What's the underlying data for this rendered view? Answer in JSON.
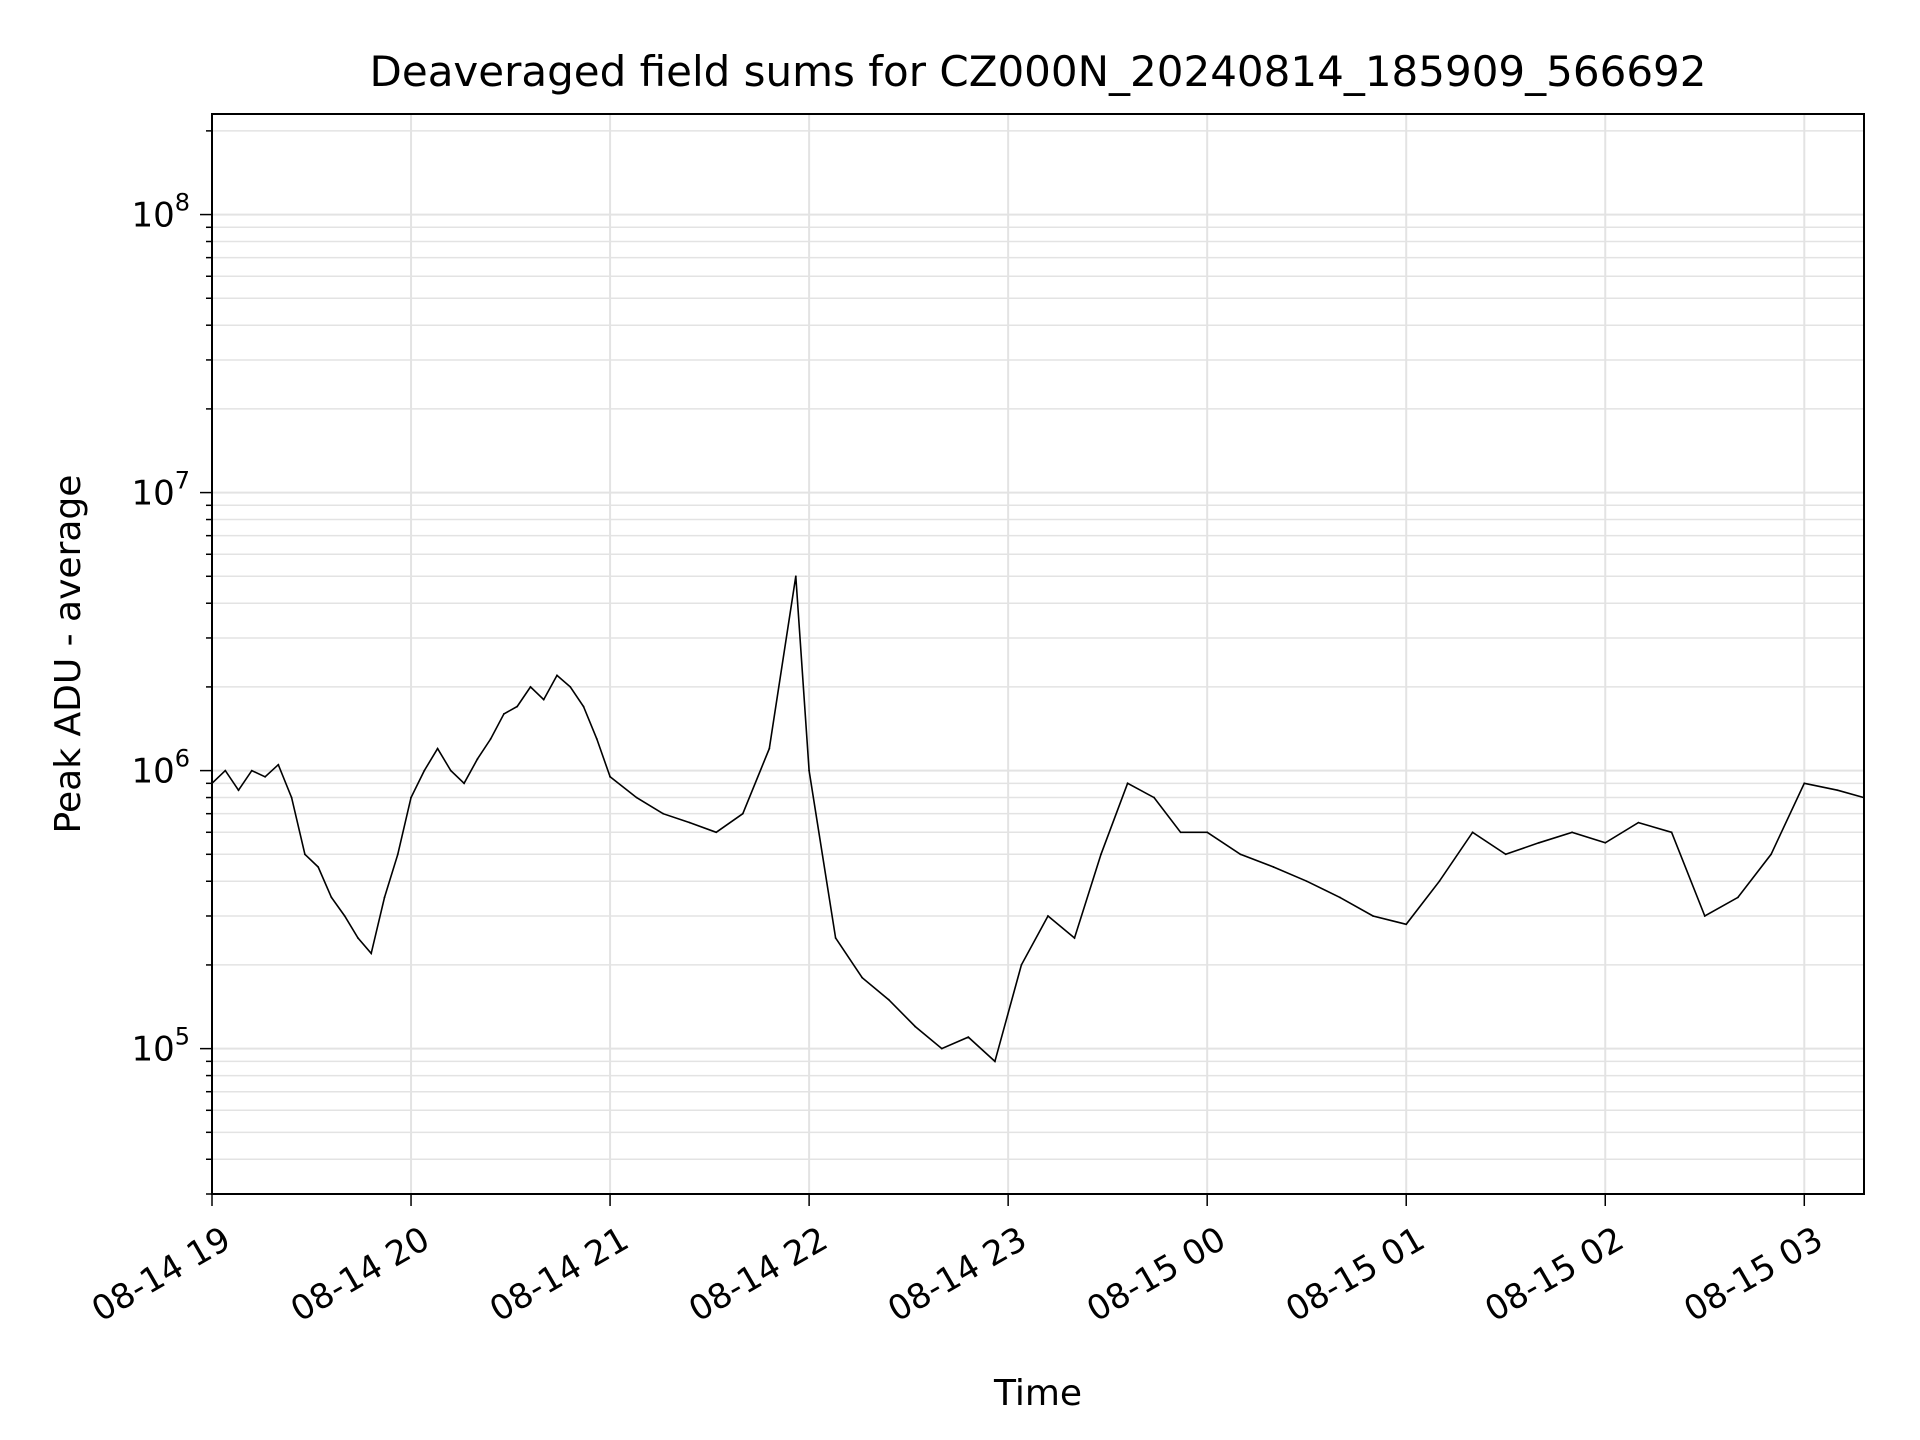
{
  "chart_data": {
    "type": "line",
    "title": "Deaveraged field sums for CZ000N_20240814_185909_566692",
    "xlabel": "Time",
    "ylabel": "Peak ADU - average",
    "yscale": "log",
    "ylim": [
      30000,
      230000000
    ],
    "xlim": [
      "2024-08-14 19:00",
      "2024-08-15 03:18"
    ],
    "grid": true,
    "line_color": "#000000",
    "x_ticks": [
      "08-14 19",
      "08-14 20",
      "08-14 21",
      "08-14 22",
      "08-14 23",
      "08-15 00",
      "08-15 01",
      "08-15 02",
      "08-15 03"
    ],
    "y_ticks": [
      {
        "base": "10",
        "exp": "5"
      },
      {
        "base": "10",
        "exp": "6"
      },
      {
        "base": "10",
        "exp": "7"
      },
      {
        "base": "10",
        "exp": "8"
      }
    ],
    "series": [
      {
        "points": [
          [
            "2024-08-14 19:00",
            900000
          ],
          [
            "2024-08-14 19:04",
            1000000
          ],
          [
            "2024-08-14 19:08",
            850000
          ],
          [
            "2024-08-14 19:12",
            1000000
          ],
          [
            "2024-08-14 19:16",
            950000
          ],
          [
            "2024-08-14 19:20",
            1050000
          ],
          [
            "2024-08-14 19:24",
            800000
          ],
          [
            "2024-08-14 19:28",
            500000
          ],
          [
            "2024-08-14 19:32",
            450000
          ],
          [
            "2024-08-14 19:36",
            350000
          ],
          [
            "2024-08-14 19:40",
            300000
          ],
          [
            "2024-08-14 19:44",
            250000
          ],
          [
            "2024-08-14 19:48",
            220000
          ],
          [
            "2024-08-14 19:52",
            350000
          ],
          [
            "2024-08-14 19:56",
            500000
          ],
          [
            "2024-08-14 20:00",
            800000
          ],
          [
            "2024-08-14 20:04",
            1000000
          ],
          [
            "2024-08-14 20:08",
            1200000
          ],
          [
            "2024-08-14 20:12",
            1000000
          ],
          [
            "2024-08-14 20:16",
            900000
          ],
          [
            "2024-08-14 20:20",
            1100000
          ],
          [
            "2024-08-14 20:24",
            1300000
          ],
          [
            "2024-08-14 20:28",
            1600000
          ],
          [
            "2024-08-14 20:32",
            1700000
          ],
          [
            "2024-08-14 20:36",
            2000000
          ],
          [
            "2024-08-14 20:40",
            1800000
          ],
          [
            "2024-08-14 20:44",
            2200000
          ],
          [
            "2024-08-14 20:48",
            2000000
          ],
          [
            "2024-08-14 20:52",
            1700000
          ],
          [
            "2024-08-14 20:56",
            1300000
          ],
          [
            "2024-08-14 21:00",
            950000
          ],
          [
            "2024-08-14 21:08",
            800000
          ],
          [
            "2024-08-14 21:16",
            700000
          ],
          [
            "2024-08-14 21:24",
            650000
          ],
          [
            "2024-08-14 21:32",
            600000
          ],
          [
            "2024-08-14 21:40",
            700000
          ],
          [
            "2024-08-14 21:48",
            1200000
          ],
          [
            "2024-08-14 21:56",
            5000000
          ],
          [
            "2024-08-14 22:00",
            1000000
          ],
          [
            "2024-08-14 22:08",
            250000
          ],
          [
            "2024-08-14 22:16",
            180000
          ],
          [
            "2024-08-14 22:24",
            150000
          ],
          [
            "2024-08-14 22:32",
            120000
          ],
          [
            "2024-08-14 22:40",
            100000
          ],
          [
            "2024-08-14 22:48",
            110000
          ],
          [
            "2024-08-14 22:56",
            90000
          ],
          [
            "2024-08-14 23:04",
            200000
          ],
          [
            "2024-08-14 23:12",
            300000
          ],
          [
            "2024-08-14 23:20",
            250000
          ],
          [
            "2024-08-14 23:28",
            500000
          ],
          [
            "2024-08-14 23:36",
            900000
          ],
          [
            "2024-08-14 23:44",
            800000
          ],
          [
            "2024-08-14 23:52",
            600000
          ],
          [
            "2024-08-15 00:00",
            600000
          ],
          [
            "2024-08-15 00:10",
            500000
          ],
          [
            "2024-08-15 00:20",
            450000
          ],
          [
            "2024-08-15 00:30",
            400000
          ],
          [
            "2024-08-15 00:40",
            350000
          ],
          [
            "2024-08-15 00:50",
            300000
          ],
          [
            "2024-08-15 01:00",
            280000
          ],
          [
            "2024-08-15 01:10",
            400000
          ],
          [
            "2024-08-15 01:20",
            600000
          ],
          [
            "2024-08-15 01:30",
            500000
          ],
          [
            "2024-08-15 01:40",
            550000
          ],
          [
            "2024-08-15 01:50",
            600000
          ],
          [
            "2024-08-15 02:00",
            550000
          ],
          [
            "2024-08-15 02:10",
            650000
          ],
          [
            "2024-08-15 02:20",
            600000
          ],
          [
            "2024-08-15 02:30",
            300000
          ],
          [
            "2024-08-15 02:40",
            350000
          ],
          [
            "2024-08-15 02:50",
            500000
          ],
          [
            "2024-08-15 03:00",
            900000
          ],
          [
            "2024-08-15 03:10",
            850000
          ],
          [
            "2024-08-15 03:18",
            800000
          ]
        ]
      }
    ]
  }
}
